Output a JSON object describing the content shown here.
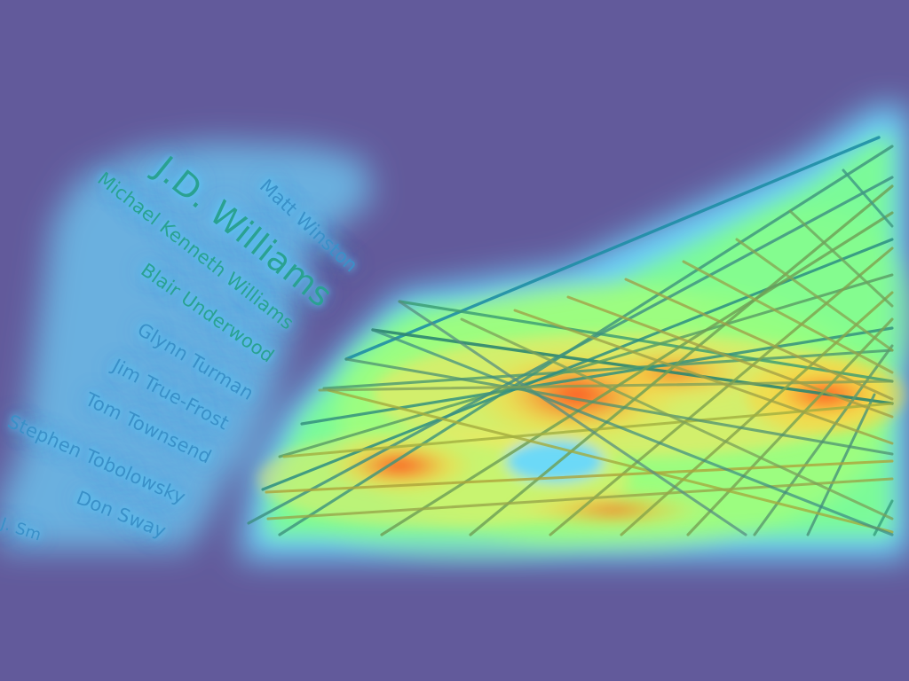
{
  "background_color": "#625a9b",
  "names": [
    {
      "id": "matt-winston",
      "text": "Matt Winston"
    },
    {
      "id": "jd-williams",
      "text": "J.D. Williams"
    },
    {
      "id": "michael-kenneth-williams",
      "text": "Michael Kenneth Williams"
    },
    {
      "id": "blair-underwood",
      "text": "Blair Underwood"
    },
    {
      "id": "glynn-turman",
      "text": "Glynn Turman"
    },
    {
      "id": "jim-true-frost",
      "text": "Jim True-Frost"
    },
    {
      "id": "tom-townsend",
      "text": "Tom Townsend"
    },
    {
      "id": "stephen-tobolowsky",
      "text": "Stephen Tobolowsky"
    },
    {
      "id": "don-sway",
      "text": "Don Sway"
    },
    {
      "id": "j-sm",
      "text": "J. Sm"
    }
  ]
}
